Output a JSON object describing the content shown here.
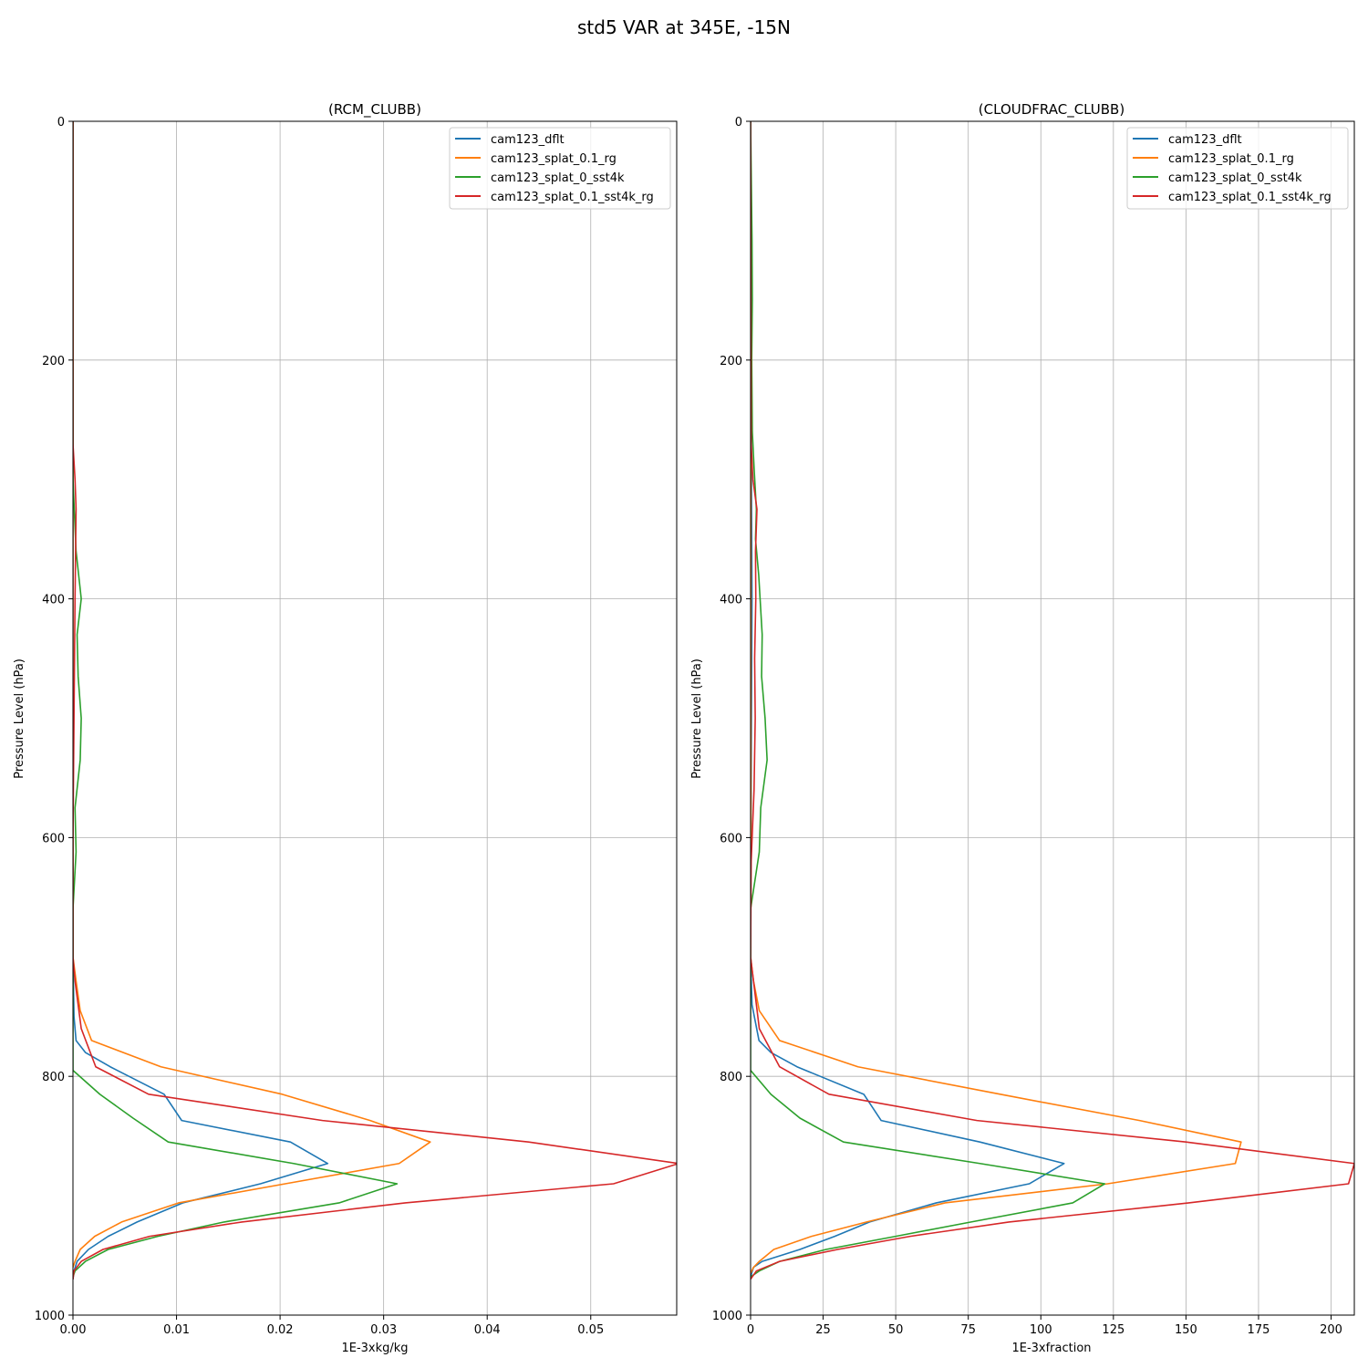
{
  "figure": {
    "title": "std5 VAR at 345E, -15N"
  },
  "chart_data": [
    {
      "type": "line",
      "title": "(RCM_CLUBB)",
      "xlabel": "1E-3xkg/kg",
      "ylabel": "Pressure Level (hPa)",
      "xlim": [
        0,
        0.0583
      ],
      "ylim": [
        1000,
        0
      ],
      "y_inverted": true,
      "xticks": [
        0,
        0.01,
        0.02,
        0.03,
        0.04,
        0.05
      ],
      "xtick_labels": [
        "0.00",
        "0.01",
        "0.02",
        "0.03",
        "0.04",
        "0.05"
      ],
      "yticks": [
        0,
        200,
        400,
        600,
        800,
        1000
      ],
      "ytick_labels": [
        "0",
        "200",
        "400",
        "600",
        "800",
        "1000"
      ],
      "grid": true,
      "legend_position": "upper right",
      "series": [
        {
          "name": "cam123_dflt",
          "color": "#1f77b4",
          "points": [
            [
              0,
              0
            ],
            [
              0,
              300
            ],
            [
              0,
              700
            ],
            [
              0.0001,
              750
            ],
            [
              0.0003,
              770
            ],
            [
              0.0012,
              780
            ],
            [
              0.0036,
              792
            ],
            [
              0.0088,
              815
            ],
            [
              0.0105,
              837
            ],
            [
              0.021,
              855
            ],
            [
              0.0246,
              873
            ],
            [
              0.0181,
              890
            ],
            [
              0.0106,
              906
            ],
            [
              0.0062,
              922
            ],
            [
              0.0034,
              934
            ],
            [
              0.0015,
              945
            ],
            [
              0.0004,
              955
            ],
            [
              0.0001,
              963
            ],
            [
              0,
              970
            ]
          ]
        },
        {
          "name": "cam123_splat_0.1_rg",
          "color": "#ff7f0e",
          "points": [
            [
              0,
              0
            ],
            [
              0,
              300
            ],
            [
              0,
              700
            ],
            [
              0.0003,
              720
            ],
            [
              0.0007,
              745
            ],
            [
              0.0018,
              770
            ],
            [
              0.0085,
              792
            ],
            [
              0.0202,
              815
            ],
            [
              0.0287,
              837
            ],
            [
              0.0345,
              855
            ],
            [
              0.0315,
              873
            ],
            [
              0.0205,
              890
            ],
            [
              0.0102,
              906
            ],
            [
              0.0047,
              922
            ],
            [
              0.0021,
              934
            ],
            [
              0.0007,
              945
            ],
            [
              0.0002,
              955
            ],
            [
              0,
              960
            ]
          ]
        },
        {
          "name": "cam123_splat_0_sst4k",
          "color": "#2ca02c",
          "points": [
            [
              0,
              0
            ],
            [
              0,
              300
            ],
            [
              0.0003,
              360
            ],
            [
              0.0008,
              400
            ],
            [
              0.0004,
              430
            ],
            [
              0.0005,
              465
            ],
            [
              0.0008,
              500
            ],
            [
              0.0007,
              535
            ],
            [
              0.0002,
              575
            ],
            [
              0.0003,
              612
            ],
            [
              0,
              660
            ],
            [
              0,
              700
            ],
            [
              0,
              795
            ],
            [
              0.0026,
              815
            ],
            [
              0.0058,
              835
            ],
            [
              0.0092,
              855
            ],
            [
              0.0213,
              873
            ],
            [
              0.0313,
              890
            ],
            [
              0.0257,
              906
            ],
            [
              0.0146,
              922
            ],
            [
              0.0082,
              934
            ],
            [
              0.0034,
              945
            ],
            [
              0.0012,
              955
            ],
            [
              0.0002,
              963
            ],
            [
              0,
              968
            ]
          ]
        },
        {
          "name": "cam123_splat_0.1_sst4k_rg",
          "color": "#d62728",
          "points": [
            [
              0,
              0
            ],
            [
              0,
              270
            ],
            [
              0.0002,
              300
            ],
            [
              0.0003,
              325
            ],
            [
              0.0002,
              400
            ],
            [
              0.0001,
              500
            ],
            [
              0,
              600
            ],
            [
              0,
              700
            ],
            [
              0.0002,
              720
            ],
            [
              0.0008,
              760
            ],
            [
              0.0022,
              792
            ],
            [
              0.0073,
              815
            ],
            [
              0.0241,
              837
            ],
            [
              0.044,
              855
            ],
            [
              0.0585,
              873
            ],
            [
              0.0522,
              890
            ],
            [
              0.0321,
              906
            ],
            [
              0.0163,
              922
            ],
            [
              0.0074,
              934
            ],
            [
              0.0029,
              945
            ],
            [
              0.0008,
              955
            ],
            [
              0.0001,
              963
            ],
            [
              0,
              970
            ]
          ]
        }
      ]
    },
    {
      "type": "line",
      "title": "(CLOUDFRAC_CLUBB)",
      "xlabel": "1E-3xfraction",
      "ylabel": "Pressure Level (hPa)",
      "xlim": [
        0,
        208
      ],
      "ylim": [
        1000,
        0
      ],
      "y_inverted": true,
      "xticks": [
        0,
        25,
        50,
        75,
        100,
        125,
        150,
        175,
        200
      ],
      "xtick_labels": [
        "0",
        "25",
        "50",
        "75",
        "100",
        "125",
        "150",
        "175",
        "200"
      ],
      "yticks": [
        0,
        200,
        400,
        600,
        800,
        1000
      ],
      "ytick_labels": [
        "0",
        "200",
        "400",
        "600",
        "800",
        "1000"
      ],
      "grid": true,
      "legend_position": "upper right",
      "series": [
        {
          "name": "cam123_dflt",
          "color": "#1f77b4",
          "points": [
            [
              0,
              0
            ],
            [
              0.2,
              200
            ],
            [
              0.3,
              300
            ],
            [
              0.5,
              400
            ],
            [
              0.3,
              500
            ],
            [
              0.1,
              600
            ],
            [
              0,
              700
            ],
            [
              0.5,
              740
            ],
            [
              2.9,
              770
            ],
            [
              7,
              780
            ],
            [
              16,
              792
            ],
            [
              39,
              815
            ],
            [
              45,
              837
            ],
            [
              79,
              855
            ],
            [
              108,
              873
            ],
            [
              96,
              890
            ],
            [
              64,
              906
            ],
            [
              41,
              922
            ],
            [
              29,
              934
            ],
            [
              17,
              945
            ],
            [
              4,
              955
            ],
            [
              1,
              960
            ],
            [
              0,
              968
            ]
          ]
        },
        {
          "name": "cam123_splat_0.1_rg",
          "color": "#ff7f0e",
          "points": [
            [
              0,
              0
            ],
            [
              0.1,
              300
            ],
            [
              0.1,
              600
            ],
            [
              0,
              700
            ],
            [
              1,
              720
            ],
            [
              3,
              745
            ],
            [
              10,
              770
            ],
            [
              37,
              792
            ],
            [
              86,
              815
            ],
            [
              134,
              837
            ],
            [
              169,
              855
            ],
            [
              167,
              873
            ],
            [
              123,
              890
            ],
            [
              67,
              906
            ],
            [
              40,
              922
            ],
            [
              21,
              934
            ],
            [
              8,
              945
            ],
            [
              3,
              955
            ],
            [
              1,
              960
            ],
            [
              0,
              965
            ]
          ]
        },
        {
          "name": "cam123_splat_0_sst4k",
          "color": "#2ca02c",
          "points": [
            [
              0,
              0
            ],
            [
              0.5,
              100
            ],
            [
              0.6,
              150
            ],
            [
              0.4,
              200
            ],
            [
              0.6,
              260
            ],
            [
              1.2,
              290
            ],
            [
              2,
              325
            ],
            [
              1.7,
              350
            ],
            [
              2.8,
              380
            ],
            [
              4,
              430
            ],
            [
              3.8,
              465
            ],
            [
              5,
              500
            ],
            [
              5.7,
              535
            ],
            [
              3.5,
              575
            ],
            [
              3,
              612
            ],
            [
              0,
              660
            ],
            [
              0,
              700
            ],
            [
              0,
              795
            ],
            [
              7,
              815
            ],
            [
              17,
              835
            ],
            [
              32,
              855
            ],
            [
              79,
              873
            ],
            [
              122,
              890
            ],
            [
              111,
              906
            ],
            [
              76,
              922
            ],
            [
              50,
              934
            ],
            [
              26,
              945
            ],
            [
              10,
              955
            ],
            [
              3,
              963
            ],
            [
              0,
              968
            ]
          ]
        },
        {
          "name": "cam123_splat_0.1_sst4k_rg",
          "color": "#d62728",
          "points": [
            [
              0,
              0
            ],
            [
              0.2,
              270
            ],
            [
              0.8,
              300
            ],
            [
              2.2,
              325
            ],
            [
              1.7,
              360
            ],
            [
              1.8,
              400
            ],
            [
              1.4,
              450
            ],
            [
              1.6,
              500
            ],
            [
              1.2,
              560
            ],
            [
              0.2,
              620
            ],
            [
              0,
              700
            ],
            [
              1,
              720
            ],
            [
              3,
              760
            ],
            [
              10,
              792
            ],
            [
              27,
              815
            ],
            [
              78,
              837
            ],
            [
              150,
              855
            ],
            [
              208,
              873
            ],
            [
              206,
              890
            ],
            [
              151,
              906
            ],
            [
              89,
              922
            ],
            [
              55,
              934
            ],
            [
              30,
              945
            ],
            [
              10,
              955
            ],
            [
              2,
              963
            ],
            [
              0,
              970
            ]
          ]
        }
      ]
    }
  ]
}
